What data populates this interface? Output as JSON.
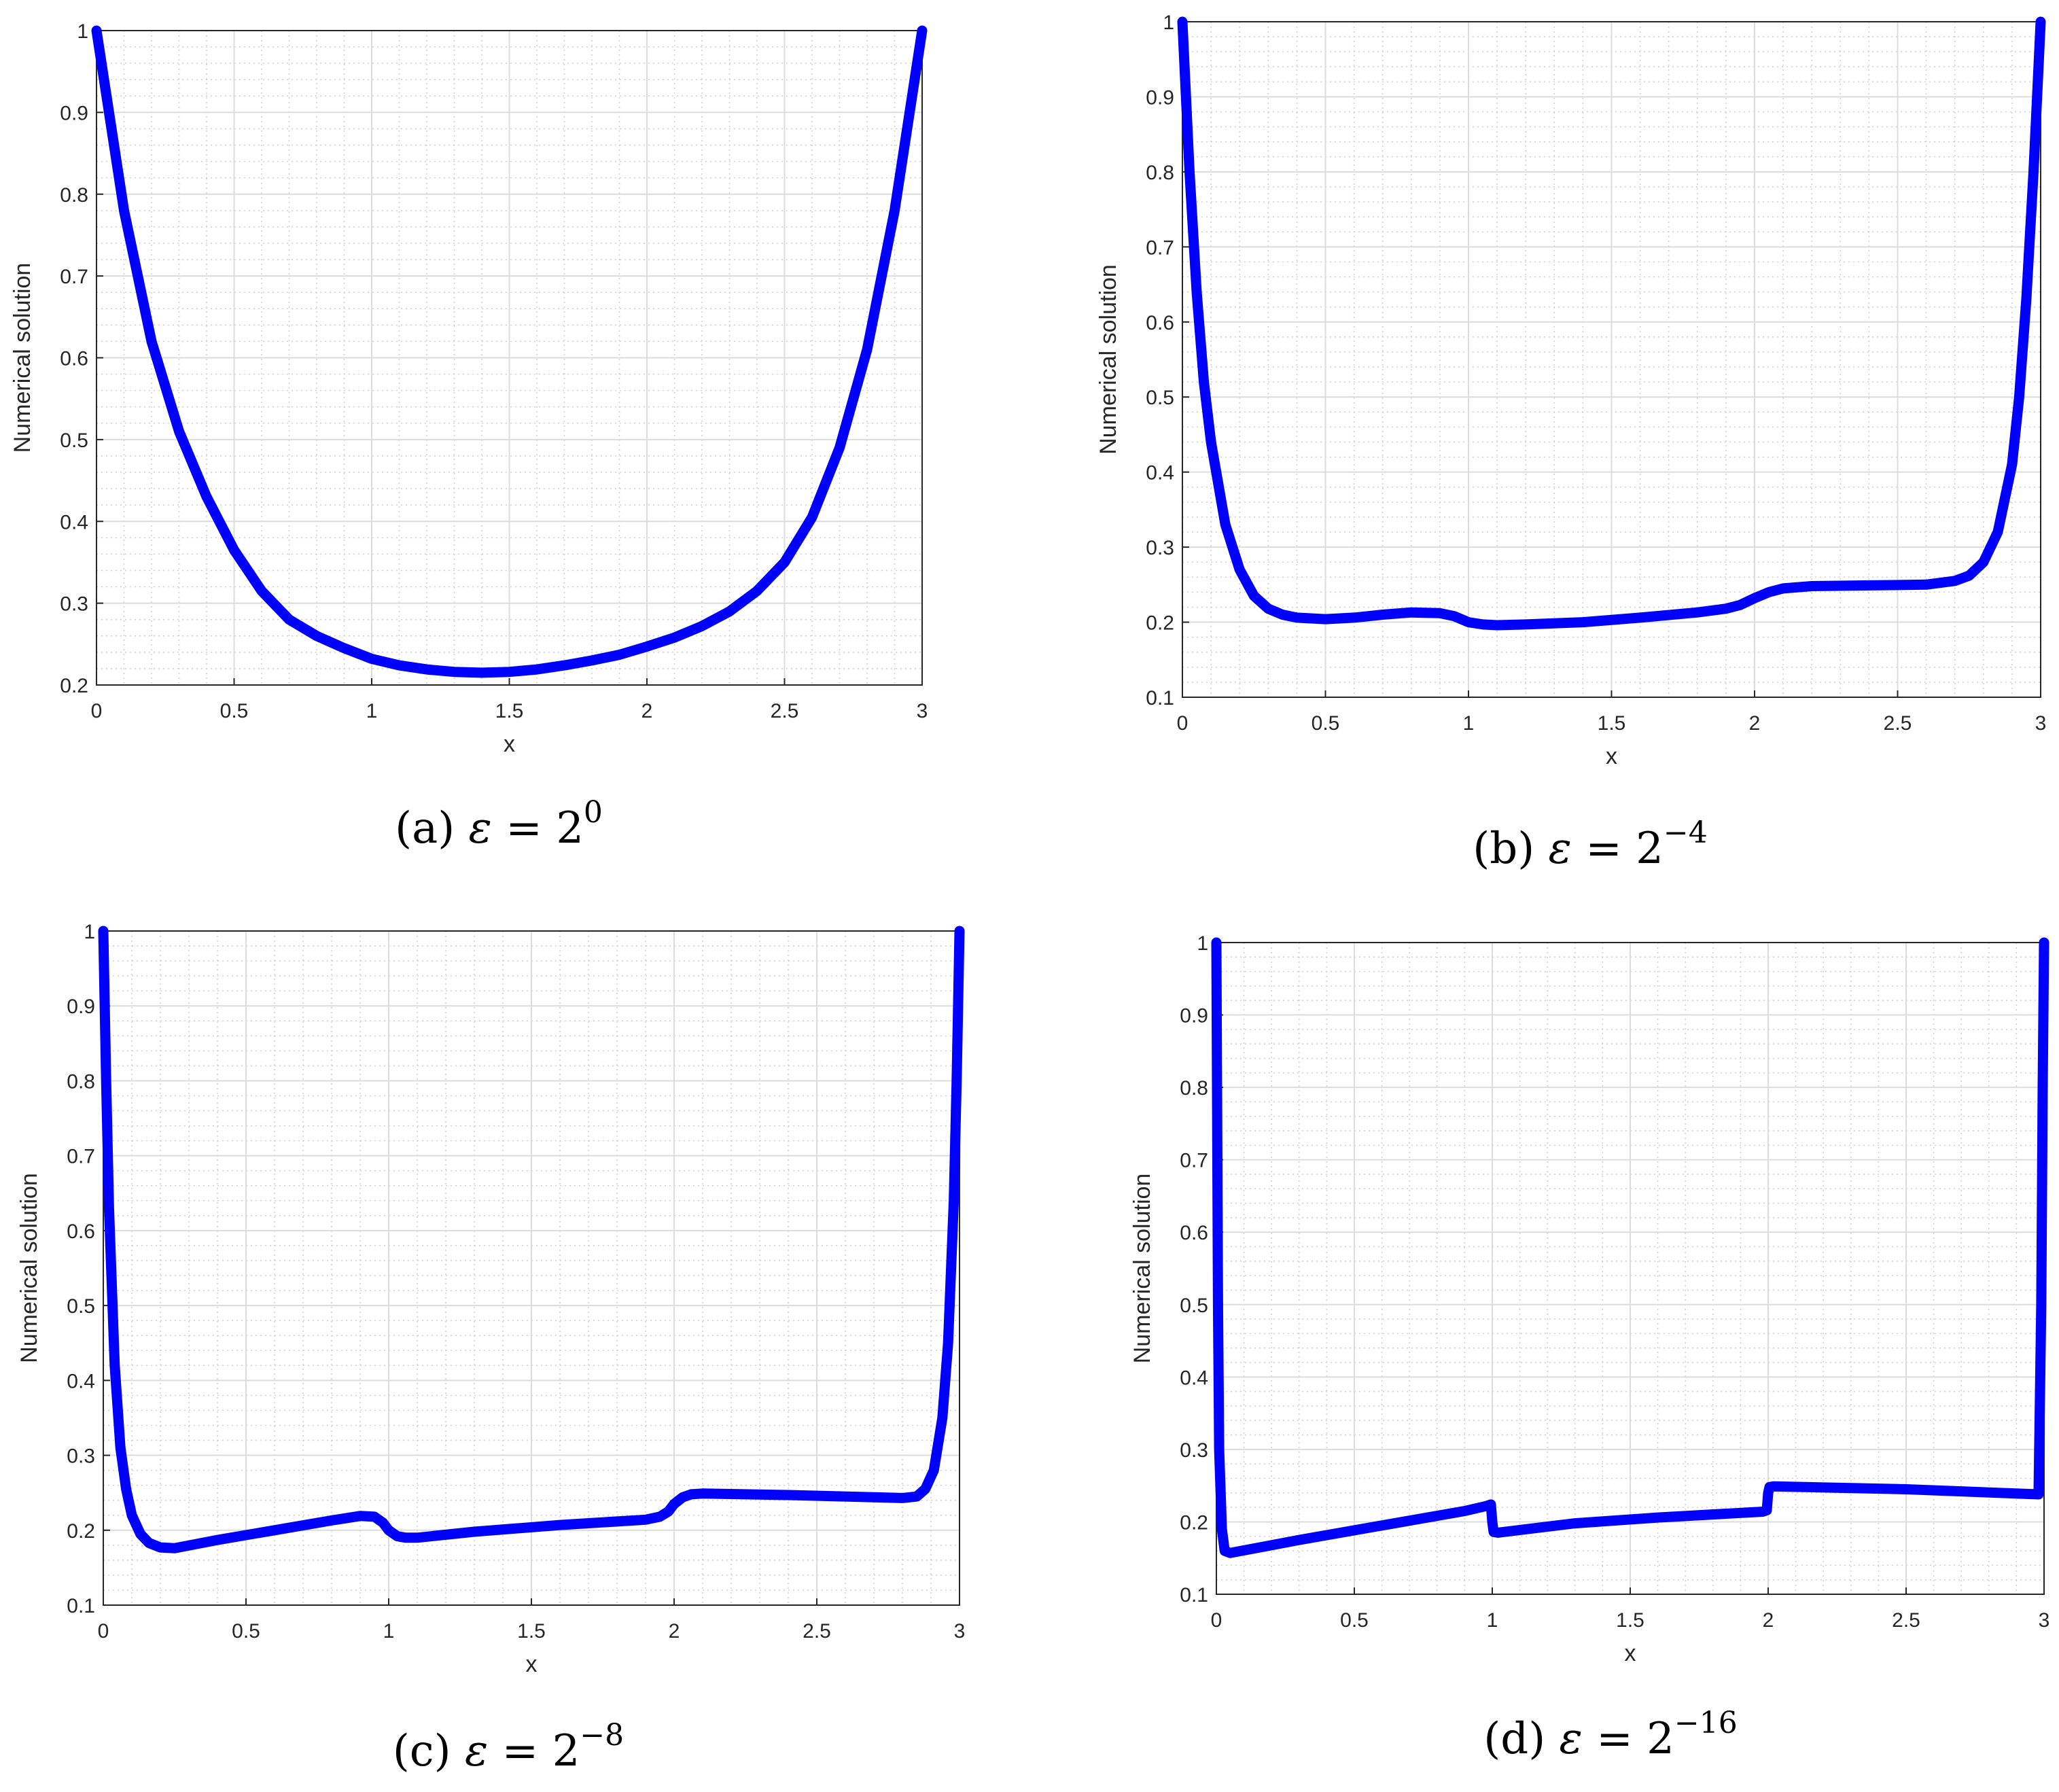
{
  "colors": {
    "line": "#0000ff",
    "major_grid": "#dcdcdc",
    "minor_grid": "#cfcfcf",
    "axes": "#262626"
  },
  "chart_data": [
    {
      "type": "line",
      "caption": {
        "prefix": "(a)",
        "symbol": "ε",
        "relation": "=",
        "base": "2",
        "exponent": "0"
      },
      "xlabel": "x",
      "ylabel": "Numerical solution",
      "xlim": [
        0,
        3
      ],
      "ylim": [
        0.2,
        1
      ],
      "xticks": [
        0,
        0.5,
        1,
        1.5,
        2,
        2.5,
        3
      ],
      "xtick_labels": [
        "0",
        "0.5",
        "1",
        "1.5",
        "2",
        "2.5",
        "3"
      ],
      "yticks": [
        0.2,
        0.3,
        0.4,
        0.5,
        0.6,
        0.7,
        0.8,
        0.9,
        1
      ],
      "ytick_labels": [
        "0.2",
        "0.3",
        "0.4",
        "0.5",
        "0.6",
        "0.7",
        "0.8",
        "0.9",
        "1"
      ],
      "grid": true,
      "minor_grid": true,
      "series": [
        {
          "x": [
            0,
            0.1,
            0.2,
            0.3,
            0.4,
            0.5,
            0.6,
            0.7,
            0.8,
            0.9,
            1.0,
            1.1,
            1.2,
            1.3,
            1.4,
            1.5,
            1.6,
            1.7,
            1.8,
            1.9,
            2.0,
            2.1,
            2.2,
            2.3,
            2.4,
            2.5,
            2.6,
            2.7,
            2.8,
            2.9,
            3.0
          ],
          "y": [
            1.0,
            0.78,
            0.62,
            0.51,
            0.43,
            0.365,
            0.315,
            0.28,
            0.26,
            0.245,
            0.232,
            0.224,
            0.219,
            0.216,
            0.215,
            0.216,
            0.219,
            0.224,
            0.23,
            0.237,
            0.247,
            0.258,
            0.272,
            0.29,
            0.315,
            0.35,
            0.405,
            0.49,
            0.61,
            0.78,
            1.0
          ]
        }
      ]
    },
    {
      "type": "line",
      "caption": {
        "prefix": "(b)",
        "symbol": "ε",
        "relation": "=",
        "base": "2",
        "exponent": "−4"
      },
      "xlabel": "x",
      "ylabel": "Numerical solution",
      "xlim": [
        0,
        3
      ],
      "ylim": [
        0.1,
        1
      ],
      "xticks": [
        0,
        0.5,
        1,
        1.5,
        2,
        2.5,
        3
      ],
      "xtick_labels": [
        "0",
        "0.5",
        "1",
        "1.5",
        "2",
        "2.5",
        "3"
      ],
      "yticks": [
        0.1,
        0.2,
        0.3,
        0.4,
        0.5,
        0.6,
        0.7,
        0.8,
        0.9,
        1
      ],
      "ytick_labels": [
        "0.1",
        "0.2",
        "0.3",
        "0.4",
        "0.5",
        "0.6",
        "0.7",
        "0.8",
        "0.9",
        "1"
      ],
      "grid": true,
      "minor_grid": true,
      "series": [
        {
          "x": [
            0,
            0.025,
            0.05,
            0.075,
            0.1,
            0.15,
            0.2,
            0.25,
            0.3,
            0.35,
            0.4,
            0.5,
            0.6,
            0.7,
            0.8,
            0.9,
            0.95,
            1.0,
            1.05,
            1.1,
            1.2,
            1.4,
            1.6,
            1.8,
            1.9,
            1.95,
            2.0,
            2.05,
            2.1,
            2.2,
            2.4,
            2.6,
            2.7,
            2.75,
            2.8,
            2.85,
            2.9,
            2.925,
            2.95,
            2.975,
            3.0
          ],
          "y": [
            1.0,
            0.8,
            0.64,
            0.52,
            0.44,
            0.33,
            0.27,
            0.235,
            0.218,
            0.21,
            0.206,
            0.204,
            0.206,
            0.21,
            0.213,
            0.212,
            0.208,
            0.2,
            0.197,
            0.196,
            0.197,
            0.2,
            0.206,
            0.213,
            0.218,
            0.223,
            0.232,
            0.24,
            0.245,
            0.248,
            0.249,
            0.25,
            0.255,
            0.262,
            0.28,
            0.32,
            0.41,
            0.5,
            0.63,
            0.8,
            1.0
          ]
        }
      ]
    },
    {
      "type": "line",
      "caption": {
        "prefix": "(c)",
        "symbol": "ε",
        "relation": "=",
        "base": "2",
        "exponent": "−8"
      },
      "xlabel": "x",
      "ylabel": "Numerical solution",
      "xlim": [
        0,
        3
      ],
      "ylim": [
        0.1,
        1
      ],
      "xticks": [
        0,
        0.5,
        1,
        1.5,
        2,
        2.5,
        3
      ],
      "xtick_labels": [
        "0",
        "0.5",
        "1",
        "1.5",
        "2",
        "2.5",
        "3"
      ],
      "yticks": [
        0.1,
        0.2,
        0.3,
        0.4,
        0.5,
        0.6,
        0.7,
        0.8,
        0.9,
        1
      ],
      "ytick_labels": [
        "0.1",
        "0.2",
        "0.3",
        "0.4",
        "0.5",
        "0.6",
        "0.7",
        "0.8",
        "0.9",
        "1"
      ],
      "grid": true,
      "minor_grid": true,
      "series": [
        {
          "x": [
            0,
            0.01,
            0.02,
            0.04,
            0.06,
            0.08,
            0.1,
            0.13,
            0.16,
            0.2,
            0.25,
            0.4,
            0.6,
            0.8,
            0.9,
            0.95,
            0.98,
            1.0,
            1.03,
            1.06,
            1.1,
            1.3,
            1.6,
            1.9,
            1.95,
            1.98,
            2.0,
            2.03,
            2.06,
            2.1,
            2.4,
            2.7,
            2.8,
            2.85,
            2.88,
            2.91,
            2.94,
            2.96,
            2.98,
            2.99,
            3.0
          ],
          "y": [
            1.0,
            0.8,
            0.63,
            0.42,
            0.31,
            0.255,
            0.22,
            0.195,
            0.183,
            0.177,
            0.176,
            0.187,
            0.2,
            0.213,
            0.219,
            0.218,
            0.21,
            0.2,
            0.192,
            0.19,
            0.19,
            0.198,
            0.207,
            0.214,
            0.218,
            0.225,
            0.235,
            0.244,
            0.248,
            0.249,
            0.247,
            0.244,
            0.243,
            0.245,
            0.255,
            0.28,
            0.35,
            0.45,
            0.64,
            0.8,
            1.0
          ]
        }
      ]
    },
    {
      "type": "line",
      "caption": {
        "prefix": "(d)",
        "symbol": "ε",
        "relation": "=",
        "base": "2",
        "exponent": "−16"
      },
      "xlabel": "x",
      "ylabel": "Numerical solution",
      "xlim": [
        0,
        3
      ],
      "ylim": [
        0.1,
        1
      ],
      "xticks": [
        0,
        0.5,
        1,
        1.5,
        2,
        2.5,
        3
      ],
      "xtick_labels": [
        "0",
        "0.5",
        "1",
        "1.5",
        "2",
        "2.5",
        "3"
      ],
      "yticks": [
        0.1,
        0.2,
        0.3,
        0.4,
        0.5,
        0.6,
        0.7,
        0.8,
        0.9,
        1
      ],
      "ytick_labels": [
        "0.1",
        "0.2",
        "0.3",
        "0.4",
        "0.5",
        "0.6",
        "0.7",
        "0.8",
        "0.9",
        "1"
      ],
      "grid": true,
      "minor_grid": true,
      "series": [
        {
          "x": [
            0,
            0.003,
            0.006,
            0.01,
            0.02,
            0.03,
            0.05,
            0.3,
            0.6,
            0.9,
            0.98,
            0.995,
            1.0,
            1.005,
            1.02,
            1.3,
            1.6,
            1.98,
            1.995,
            2.0,
            2.005,
            2.02,
            2.5,
            2.98,
            2.99,
            2.995,
            3.0
          ],
          "y": [
            1.0,
            0.75,
            0.5,
            0.3,
            0.19,
            0.16,
            0.157,
            0.175,
            0.195,
            0.215,
            0.222,
            0.224,
            0.2,
            0.186,
            0.185,
            0.198,
            0.206,
            0.214,
            0.216,
            0.24,
            0.248,
            0.249,
            0.245,
            0.238,
            0.5,
            0.8,
            1.0
          ]
        }
      ]
    }
  ]
}
